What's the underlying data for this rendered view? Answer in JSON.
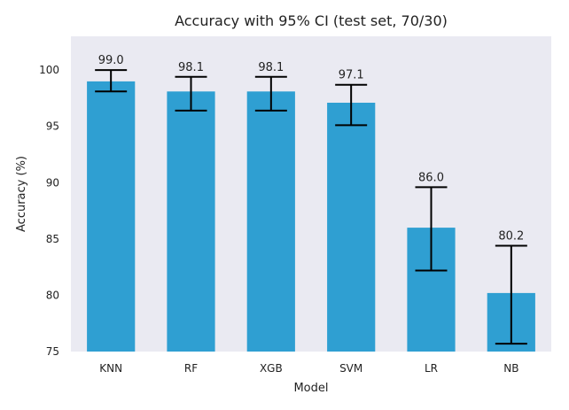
{
  "chart_data": {
    "type": "bar",
    "title": "Accuracy with 95% CI (test set, 70/30)",
    "xlabel": "Model",
    "ylabel": "Accuracy (%)",
    "categories": [
      "KNN",
      "RF",
      "XGB",
      "SVM",
      "LR",
      "NB"
    ],
    "values": [
      99.0,
      98.1,
      98.1,
      97.1,
      86.0,
      80.2
    ],
    "value_labels": [
      "99.0",
      "98.1",
      "98.1",
      "97.1",
      "86.0",
      "80.2"
    ],
    "ci_lower": [
      98.1,
      96.4,
      96.4,
      95.1,
      82.2,
      75.7
    ],
    "ci_upper": [
      100.0,
      99.4,
      99.4,
      98.7,
      89.6,
      84.4
    ],
    "ylim": [
      75,
      103.0
    ],
    "yticks": [
      75,
      80,
      85,
      90,
      95,
      100
    ],
    "ytick_labels": [
      "75",
      "80",
      "85",
      "90",
      "95",
      "100"
    ],
    "grid": false,
    "colors": {
      "bar": "#2f9fd2",
      "errorbar": "#000000",
      "plot_background": "#eaeaf2"
    }
  }
}
